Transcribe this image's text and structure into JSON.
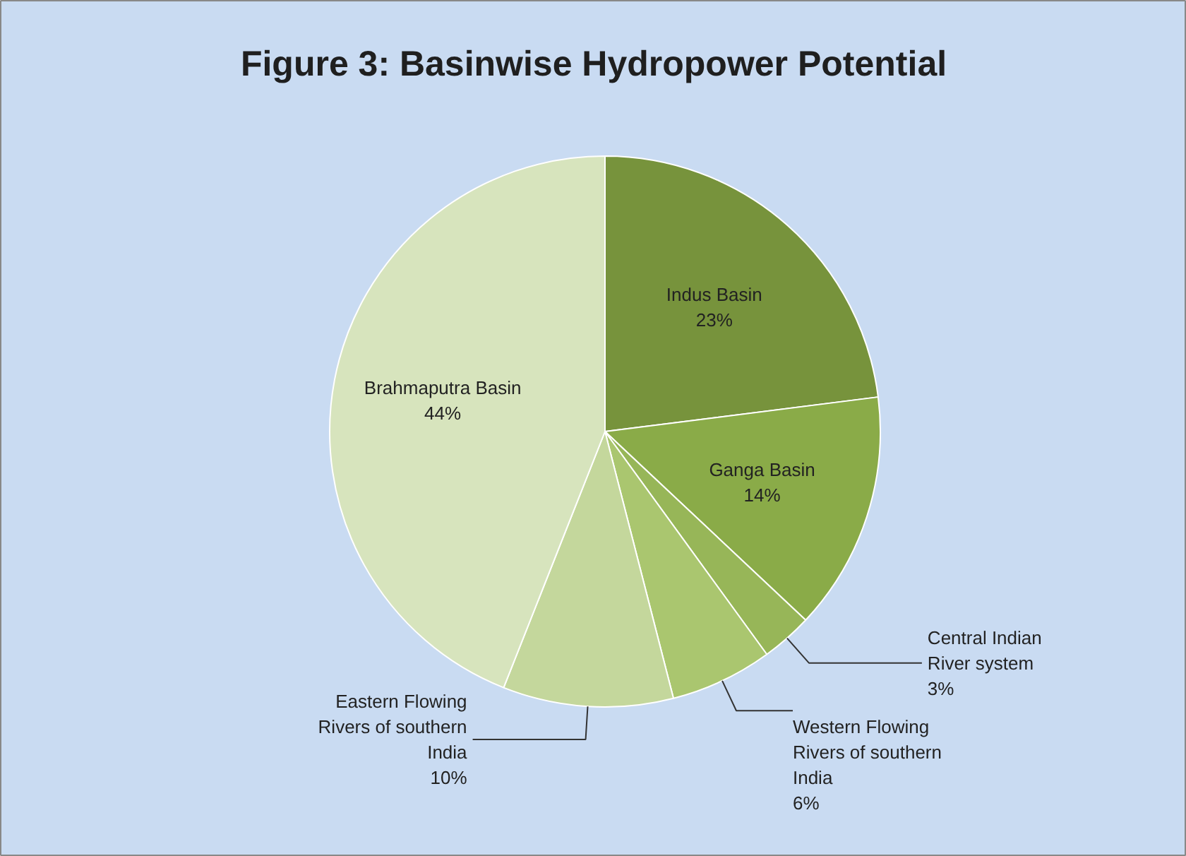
{
  "chart_data": {
    "type": "pie",
    "title": "Figure 3: Basinwise Hydropower Potential",
    "categories": [
      "Indus Basin",
      "Ganga Basin",
      "Central Indian River system",
      "Western Flowing Rivers of southern India",
      "Eastern Flowing Rivers of southern India",
      "Brahmaputra Basin"
    ],
    "values": [
      23,
      14,
      3,
      6,
      10,
      44
    ],
    "value_labels": [
      "23%",
      "14%",
      "3%",
      "6%",
      "10%",
      "44%"
    ],
    "colors": [
      "#77933c",
      "#8aab48",
      "#97b658",
      "#aac66f",
      "#c4d79c",
      "#d7e4bd"
    ]
  }
}
